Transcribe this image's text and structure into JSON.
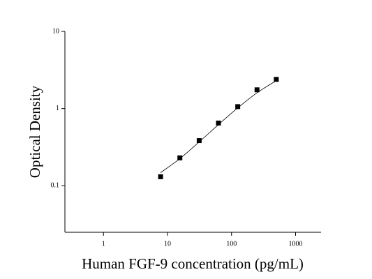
{
  "chart_data": {
    "type": "scatter",
    "x_label": "Human FGF-9 concentration (pg/mL)",
    "y_label": "Optical Density",
    "x": [
      7.8,
      15.6,
      31.25,
      62.5,
      125,
      250,
      500
    ],
    "values": [
      0.131,
      0.23,
      0.385,
      0.65,
      1.06,
      1.75,
      2.39
    ],
    "fit_values": [
      0.148,
      0.225,
      0.37,
      0.62,
      1.02,
      1.6,
      2.3
    ],
    "color": "#000000",
    "log_x": true,
    "log_y": true,
    "xlim": [
      0.25,
      2500
    ],
    "xticks": [
      1,
      10,
      100,
      1000
    ],
    "ylim": [
      0.025,
      10
    ],
    "yticks": [
      0.1,
      1,
      10
    ]
  }
}
